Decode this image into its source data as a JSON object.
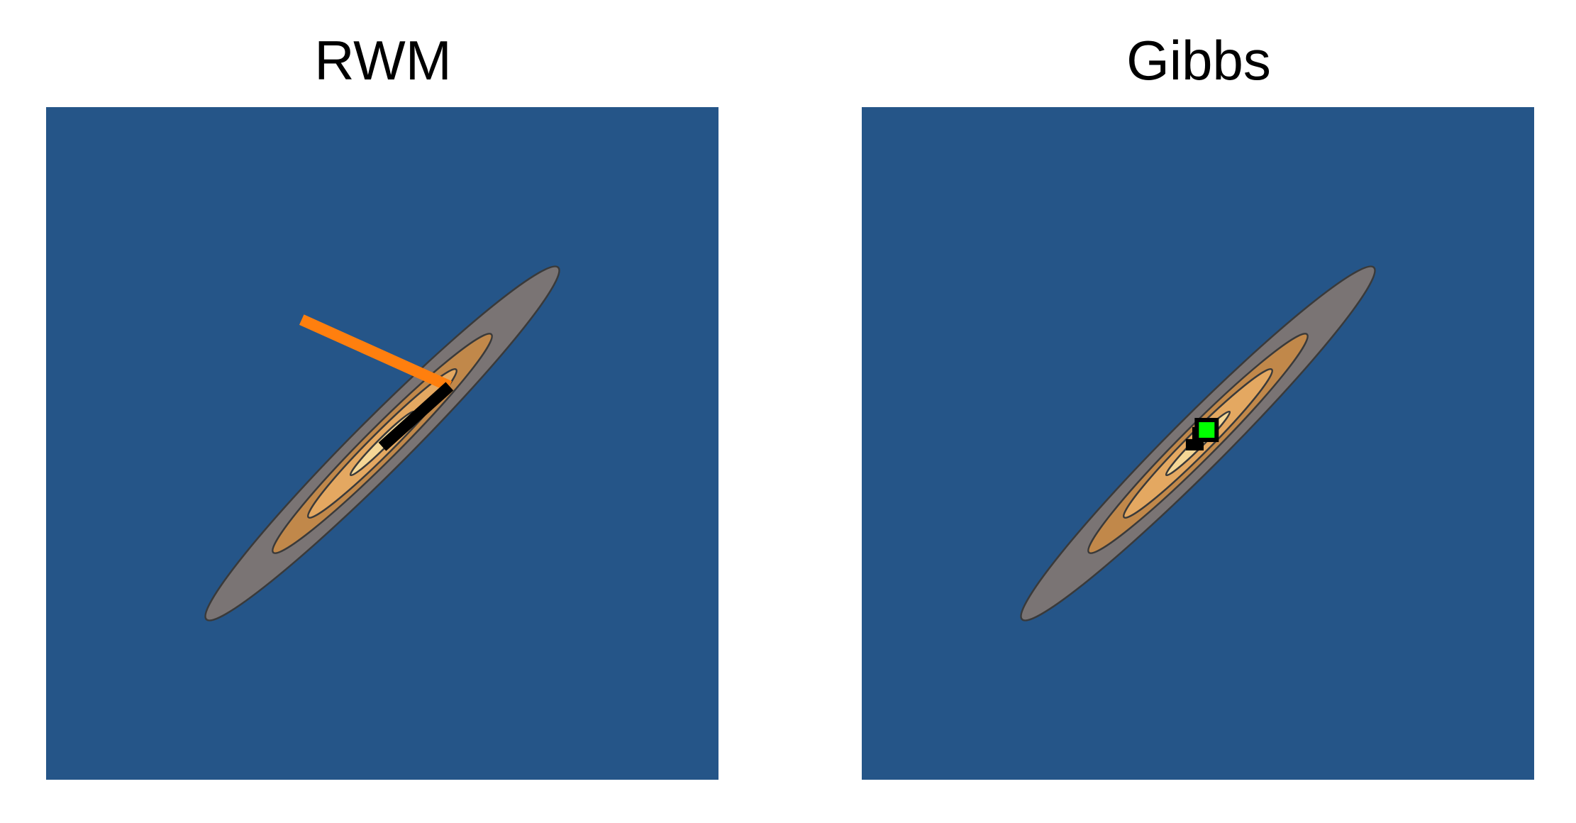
{
  "chart_data": [
    {
      "type": "line",
      "title": "RWM",
      "background": "#255588",
      "contour": {
        "center": [
          0,
          0
        ],
        "rotation_deg": 45,
        "semi_major": 3.7,
        "semi_minor": 0.4,
        "levels": [
          {
            "scale": 1.0,
            "fill": "#7a7474"
          },
          {
            "scale": 0.62,
            "fill": "#c1884a"
          },
          {
            "scale": 0.42,
            "fill": "#e4a861"
          },
          {
            "scale": 0.18,
            "fill": "#f5d796"
          }
        ],
        "edge_color": "#3a3a3a"
      },
      "series": [
        {
          "color": "#ff7f0e",
          "points": [
            [
              -1.2,
              1.84
            ],
            [
              1.0,
              0.85
            ]
          ]
        },
        {
          "color": "#000000",
          "points": [
            [
              1.0,
              0.85
            ],
            [
              0.0,
              -0.05
            ]
          ]
        }
      ],
      "xlim": [
        -5,
        5
      ],
      "ylim": [
        -5,
        5
      ],
      "grid": false
    },
    {
      "type": "line",
      "title": "Gibbs",
      "background": "#255588",
      "contour": {
        "center": [
          0,
          0
        ],
        "rotation_deg": 45,
        "semi_major": 3.7,
        "semi_minor": 0.4,
        "levels": [
          {
            "scale": 1.0,
            "fill": "#7a7474"
          },
          {
            "scale": 0.62,
            "fill": "#c1884a"
          },
          {
            "scale": 0.42,
            "fill": "#e4a861"
          },
          {
            "scale": 0.18,
            "fill": "#f5d796"
          }
        ],
        "edge_color": "#3a3a3a"
      },
      "series": [
        {
          "color": "#000000",
          "points": [
            [
              -0.18,
              -0.02
            ],
            [
              0.0,
              -0.02
            ],
            [
              0.0,
              0.16
            ],
            [
              0.18,
              0.16
            ],
            [
              0.18,
              0.26
            ]
          ]
        }
      ],
      "current_point": {
        "x": 0.13,
        "y": 0.2,
        "color": "#00ff00"
      },
      "xlim": [
        -5,
        5
      ],
      "ylim": [
        -5,
        5
      ],
      "grid": false
    }
  ]
}
